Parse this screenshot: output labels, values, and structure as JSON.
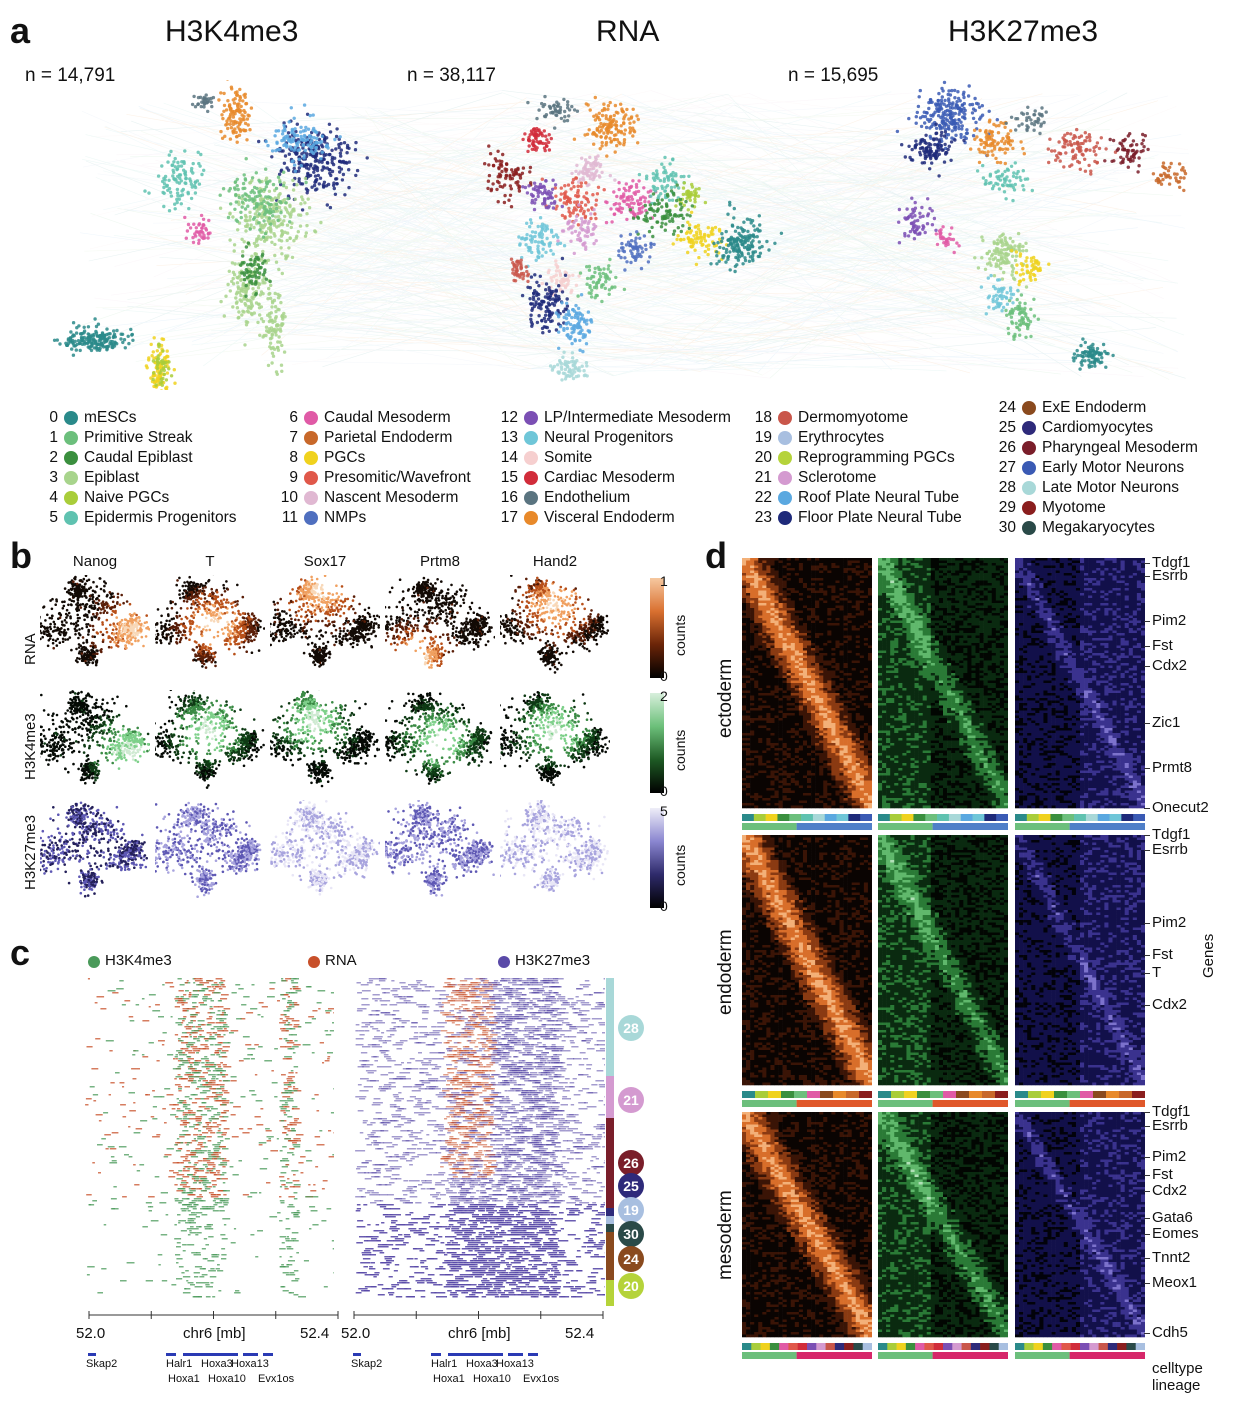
{
  "panels": {
    "a": "a",
    "b": "b",
    "c": "c",
    "d": "d"
  },
  "panel_a": {
    "titles": [
      "H3K4me3",
      "RNA",
      "H3K27me3"
    ],
    "counts": [
      "n = 14,791",
      "n = 38,117",
      "n = 15,695"
    ]
  },
  "legend": [
    {
      "num": "0",
      "label": "mESCs",
      "color": "#2a8a8a"
    },
    {
      "num": "1",
      "label": "Primitive Streak",
      "color": "#6cbf7c"
    },
    {
      "num": "2",
      "label": "Caudal Epiblast",
      "color": "#3a8f3e"
    },
    {
      "num": "3",
      "label": "Epiblast",
      "color": "#a8d48c"
    },
    {
      "num": "4",
      "label": "Naive PGCs",
      "color": "#a9cd3a"
    },
    {
      "num": "5",
      "label": "Epidermis Progenitors",
      "color": "#5fc2b0"
    },
    {
      "num": "6",
      "label": "Caudal Mesoderm",
      "color": "#e05aa6"
    },
    {
      "num": "7",
      "label": "Parietal Endoderm",
      "color": "#c8682a"
    },
    {
      "num": "8",
      "label": "PGCs",
      "color": "#f0d21e"
    },
    {
      "num": "9",
      "label": "Presomitic/Wavefront",
      "color": "#e0584a"
    },
    {
      "num": "10",
      "label": "Nascent Mesoderm",
      "color": "#e0b8d2"
    },
    {
      "num": "11",
      "label": "NMPs",
      "color": "#4f6fbf"
    },
    {
      "num": "12",
      "label": "LP/Intermediate Mesoderm",
      "color": "#7b4fb4"
    },
    {
      "num": "13",
      "label": "Neural Progenitors",
      "color": "#6fc6d8"
    },
    {
      "num": "14",
      "label": "Somite",
      "color": "#f6cfcf"
    },
    {
      "num": "15",
      "label": "Cardiac Mesoderm",
      "color": "#d12c3a"
    },
    {
      "num": "16",
      "label": "Endothelium",
      "color": "#5a7480"
    },
    {
      "num": "17",
      "label": "Visceral Endoderm",
      "color": "#e8892a"
    },
    {
      "num": "18",
      "label": "Dermomyotome",
      "color": "#c9564a"
    },
    {
      "num": "19",
      "label": "Erythrocytes",
      "color": "#a8bfe0"
    },
    {
      "num": "20",
      "label": "Reprogramming PGCs",
      "color": "#b5d33a"
    },
    {
      "num": "21",
      "label": "Sclerotome",
      "color": "#d49ad0"
    },
    {
      "num": "22",
      "label": "Roof Plate Neural Tube",
      "color": "#5aa8e0"
    },
    {
      "num": "23",
      "label": "Floor Plate Neural Tube",
      "color": "#1e2a7a"
    },
    {
      "num": "24",
      "label": "ExE Endoderm",
      "color": "#8a4a1e"
    },
    {
      "num": "25",
      "label": "Cardiomyocytes",
      "color": "#2e2a7a"
    },
    {
      "num": "26",
      "label": "Pharyngeal Mesoderm",
      "color": "#7a1e2a"
    },
    {
      "num": "27",
      "label": "Early Motor Neurons",
      "color": "#3a5ab4"
    },
    {
      "num": "28",
      "label": "Late Motor Neurons",
      "color": "#a8d8d8"
    },
    {
      "num": "29",
      "label": "Myotome",
      "color": "#8a1e1e"
    },
    {
      "num": "30",
      "label": "Megakaryocytes",
      "color": "#2a4a48"
    }
  ],
  "panel_b": {
    "genes": [
      "Nanog",
      "T",
      "Sox17",
      "Prtm8",
      "Hand2"
    ],
    "rows": [
      "RNA",
      "H3K4me3",
      "H3K27me3"
    ],
    "colorbars": [
      {
        "max": "1",
        "min": "0",
        "label": "counts"
      },
      {
        "max": "2",
        "min": "0",
        "label": "counts"
      },
      {
        "max": "5",
        "min": "0",
        "label": "counts"
      }
    ]
  },
  "panel_c": {
    "legend": [
      "H3K4me3",
      "RNA",
      "H3K27me3"
    ],
    "legend_colors": [
      "#4a9a5a",
      "#c8502a",
      "#5a4aa8"
    ],
    "axis": {
      "left": "52.0",
      "mid": "chr6 [mb]",
      "right": "52.4"
    },
    "genes_top": [
      "Skap2",
      "Halr1",
      "Hoxa3",
      "Hoxa13"
    ],
    "genes_bottom": [
      "Hoxa1",
      "Hoxa10",
      "Evx1os"
    ],
    "clusters": [
      {
        "num": "28",
        "color": "#a8d8d8"
      },
      {
        "num": "21",
        "color": "#d49ad0"
      },
      {
        "num": "26",
        "color": "#7a1e2a"
      },
      {
        "num": "25",
        "color": "#2e2a7a"
      },
      {
        "num": "19",
        "color": "#a8bfe0"
      },
      {
        "num": "30",
        "color": "#2a4a48"
      },
      {
        "num": "24",
        "color": "#8a4a1e"
      },
      {
        "num": "20",
        "color": "#b5d33a"
      }
    ]
  },
  "panel_d": {
    "lineages": [
      "ectoderm",
      "endoderm",
      "mesoderm"
    ],
    "genes": [
      [
        "Tdgf1",
        "Esrrb",
        "Pim2",
        "Fst",
        "Cdx2",
        "Zic1",
        "Prmt8",
        "Onecut2"
      ],
      [
        "Tdgf1",
        "Esrrb",
        "Pim2",
        "Fst",
        "T",
        "Cdx2"
      ],
      [
        "Tdgf1",
        "Esrrb",
        "Pim2",
        "Fst",
        "Cdx2",
        "Gata6",
        "Eomes",
        "Tnnt2",
        "Meox1",
        "Cdh5"
      ]
    ],
    "axis_label": "Genes",
    "bottom_labels": [
      "celltype",
      "lineage"
    ]
  }
}
